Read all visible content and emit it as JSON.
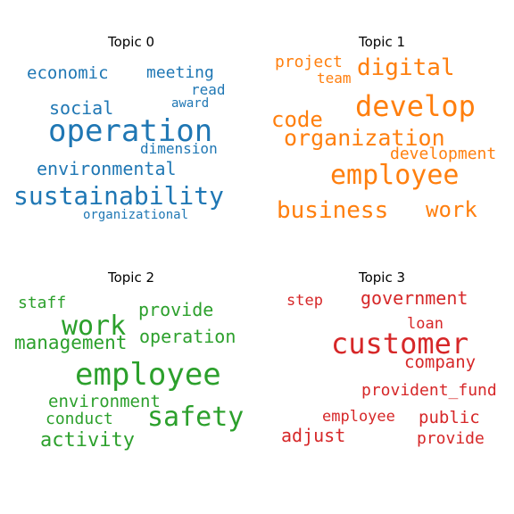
{
  "chart_data": [
    {
      "type": "wordcloud",
      "title": "Topic 0",
      "color": "#1f77b4",
      "words": [
        {
          "text": "operation",
          "weight": 34
        },
        {
          "text": "sustainability",
          "weight": 28
        },
        {
          "text": "environmental",
          "weight": 20
        },
        {
          "text": "social",
          "weight": 20
        },
        {
          "text": "economic",
          "weight": 19
        },
        {
          "text": "meeting",
          "weight": 18
        },
        {
          "text": "dimension",
          "weight": 16
        },
        {
          "text": "read",
          "weight": 16
        },
        {
          "text": "award",
          "weight": 14
        },
        {
          "text": "organizational",
          "weight": 14
        }
      ]
    },
    {
      "type": "wordcloud",
      "title": "Topic 1",
      "color": "#ff7f0e",
      "words": [
        {
          "text": "develop",
          "weight": 32
        },
        {
          "text": "employee",
          "weight": 30
        },
        {
          "text": "digital",
          "weight": 26
        },
        {
          "text": "business",
          "weight": 26
        },
        {
          "text": "organization",
          "weight": 25
        },
        {
          "text": "code",
          "weight": 24
        },
        {
          "text": "work",
          "weight": 24
        },
        {
          "text": "project",
          "weight": 18
        },
        {
          "text": "development",
          "weight": 18
        },
        {
          "text": "team",
          "weight": 16
        }
      ]
    },
    {
      "type": "wordcloud",
      "title": "Topic 2",
      "color": "#2ca02c",
      "words": [
        {
          "text": "employee",
          "weight": 34
        },
        {
          "text": "safety",
          "weight": 30
        },
        {
          "text": "work",
          "weight": 30
        },
        {
          "text": "activity",
          "weight": 22
        },
        {
          "text": "management",
          "weight": 21
        },
        {
          "text": "provide",
          "weight": 20
        },
        {
          "text": "operation",
          "weight": 20
        },
        {
          "text": "environment",
          "weight": 19
        },
        {
          "text": "conduct",
          "weight": 18
        },
        {
          "text": "staff",
          "weight": 18
        }
      ]
    },
    {
      "type": "wordcloud",
      "title": "Topic 3",
      "color": "#d62728",
      "words": [
        {
          "text": "customer",
          "weight": 32
        },
        {
          "text": "government",
          "weight": 20
        },
        {
          "text": "company",
          "weight": 19
        },
        {
          "text": "adjust",
          "weight": 20
        },
        {
          "text": "public",
          "weight": 19
        },
        {
          "text": "provide",
          "weight": 18
        },
        {
          "text": "provident_fund",
          "weight": 18
        },
        {
          "text": "employee",
          "weight": 17
        },
        {
          "text": "loan",
          "weight": 17
        },
        {
          "text": "step",
          "weight": 17
        }
      ]
    }
  ]
}
